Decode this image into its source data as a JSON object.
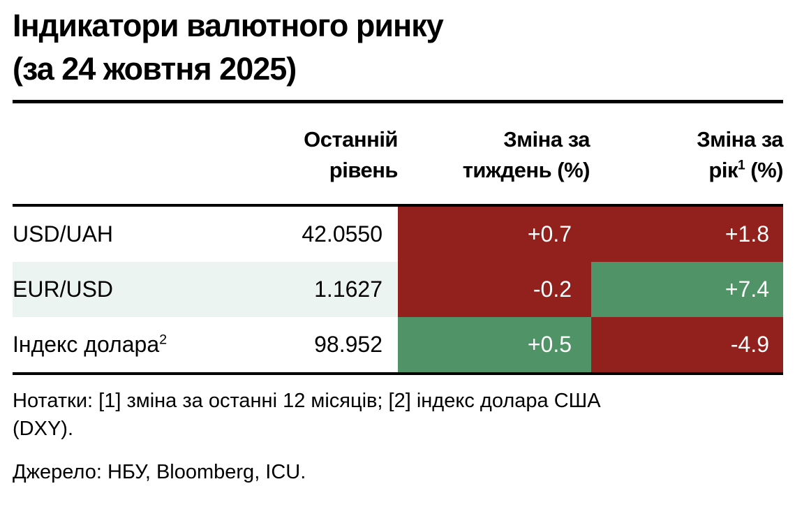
{
  "title": {
    "line1": "Індикатори валютного ринку",
    "line2": "(за 24 жовтня 2025)"
  },
  "table": {
    "headers": {
      "level": {
        "line1": "Останній",
        "line2": "рівень"
      },
      "week": {
        "line1": "Зміна за",
        "line2": "тиждень (%)"
      },
      "year": {
        "line1": "Зміна за",
        "line2_pre": "рік",
        "sup": "1",
        "line2_post": " (%)"
      }
    },
    "rows": [
      {
        "label": "USD/UAH",
        "sup": "",
        "level": "42.0550",
        "week": {
          "value": "+0.7",
          "color": "red"
        },
        "year": {
          "value": "+1.8",
          "color": "red"
        }
      },
      {
        "label": "EUR/USD",
        "sup": "",
        "level": "1.1627",
        "week": {
          "value": "-0.2",
          "color": "red"
        },
        "year": {
          "value": "+7.4",
          "color": "green"
        }
      },
      {
        "label": "Індекс долара",
        "sup": "2",
        "level": "98.952",
        "week": {
          "value": "+0.5",
          "color": "green"
        },
        "year": {
          "value": "-4.9",
          "color": "red"
        }
      }
    ]
  },
  "notes": "Нотатки: [1] зміна за останні 12 місяців; [2] індекс долара США (DXY).",
  "source": "Джерело: НБУ, Bloomberg, ICU.",
  "colors": {
    "red": "#92211d",
    "green": "#4f9366",
    "row_tint": "#ecf4f2",
    "text": "#000000",
    "cell_text": "#ffffff"
  },
  "chart_data": {
    "type": "table",
    "title": "Індикатори валютного ринку (за 24 жовтня 2025)",
    "columns": [
      "",
      "Останній рівень",
      "Зміна за тиждень (%)",
      "Зміна за рік¹ (%)"
    ],
    "rows": [
      [
        "USD/UAH",
        42.055,
        0.7,
        1.8
      ],
      [
        "EUR/USD",
        1.1627,
        -0.2,
        7.4
      ],
      [
        "Індекс долара²",
        98.952,
        0.5,
        -4.9
      ]
    ],
    "cell_backgrounds": [
      [
        "none",
        "none",
        "red",
        "red"
      ],
      [
        "tint",
        "tint",
        "red",
        "green"
      ],
      [
        "none",
        "none",
        "green",
        "red"
      ]
    ],
    "footnotes": [
      "[1] зміна за останні 12 місяців",
      "[2] індекс долара США (DXY)"
    ],
    "source": "НБУ, Bloomberg, ICU"
  }
}
